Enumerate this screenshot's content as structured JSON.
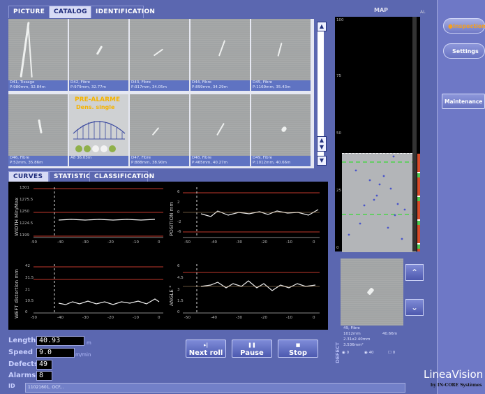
{
  "tabs": {
    "picture": "PICTURE",
    "catalog": "CATALOG",
    "identification": "IDENTIFICATION"
  },
  "catalog": {
    "items": [
      {
        "line1": "D41, Tissage",
        "line2": "P:980mm, 32.84m"
      },
      {
        "line1": "D42, Fibre",
        "line2": "P:979mm, 32.77m"
      },
      {
        "line1": "D43, Fibre",
        "line2": "P:917mm, 34.05m"
      },
      {
        "line1": "D44, Fibre",
        "line2": "P:899mm, 34.29m"
      },
      {
        "line1": "D45, Fibre",
        "line2": "P:1169mm, 35.43m"
      },
      {
        "line1": "D46, Fibre",
        "line2": "P:52mm, 35.86m"
      },
      {
        "line1": "A8 36.03m",
        "line2": ""
      },
      {
        "line1": "D47, Fibre",
        "line2": "P:888mm, 38.90m"
      },
      {
        "line1": "D48, Fibre",
        "line2": "P:465mm, 40.27m"
      },
      {
        "line1": "D49, Fibre",
        "line2": "P:1012mm, 40.66m"
      }
    ],
    "alarm_title": "PRE-ALARME",
    "alarm_sub": "Dens. single"
  },
  "curve_tabs": {
    "curves": "CURVES",
    "statistics": "STATISTICS",
    "classification": "CLASSIFICATION"
  },
  "plots": {
    "width": {
      "ylabel": "WIDTH Min/Max",
      "ticks": [
        "1301",
        "1275.5",
        "1250",
        "1224.5",
        "1199"
      ]
    },
    "position": {
      "ylabel": "POSITION mm",
      "ticks": [
        "6",
        "2",
        "0",
        "-2",
        "-6"
      ]
    },
    "weft": {
      "ylabel": "WEFT distortion mm",
      "ticks": [
        "42",
        "31.5",
        "21",
        "10.5",
        "0"
      ]
    },
    "angle": {
      "ylabel": "ANGLE °",
      "ticks": [
        "6",
        "4.5",
        "3",
        "1.5",
        "0"
      ]
    },
    "xticks": [
      "-50",
      "-40",
      "-30",
      "-20",
      "-10",
      "0"
    ]
  },
  "status": {
    "length_label": "Length",
    "length_value": "40.93",
    "length_unit": "m",
    "speed_label": "Speed",
    "speed_value": "9.0",
    "speed_unit": "m/min",
    "defects_label": "Defects",
    "defects_value": "49",
    "alarms_label": "Alarms",
    "alarms_value": "8",
    "id_label": "ID",
    "id_value": "11021601, OCF..."
  },
  "controls": {
    "next_roll": "Next roll",
    "pause": "Pause",
    "stop": "Stop"
  },
  "map": {
    "title": "MAP",
    "corner": "AL",
    "yticks": [
      "100",
      "75",
      "50",
      "25",
      "0"
    ]
  },
  "defect": {
    "line1": "49, Fibre",
    "line2": "1012mm",
    "line2b": "40.66m",
    "line3": "2.31x2.40mm",
    "line4": "3.536mm²",
    "opt1": "0",
    "opt2": "40",
    "opt3": "0",
    "vertical_label": "DEFECT"
  },
  "sidebar": {
    "inspection": "Inspection",
    "settings": "Settings",
    "maintenance": "Maintenance"
  },
  "brand": {
    "name": "LineaVision",
    "by": "by IN-CORE Systèmes"
  }
}
